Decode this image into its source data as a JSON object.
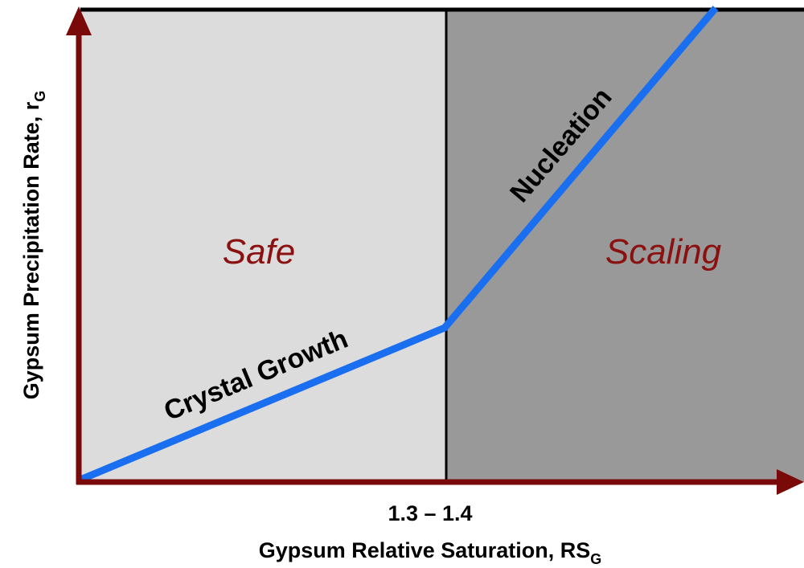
{
  "diagram": {
    "y_axis_label": {
      "text": "Gypsum Precipitation Rate, r",
      "subscript": "G"
    },
    "x_axis_label": {
      "text": "Gypsum Relative Saturation, RS",
      "subscript": "G"
    },
    "threshold_label": "1.3 – 1.4",
    "regions": [
      {
        "label": "Safe"
      },
      {
        "label": "Scaling"
      }
    ],
    "line_labels": [
      "Crystal Growth",
      "Nucleation"
    ]
  }
}
